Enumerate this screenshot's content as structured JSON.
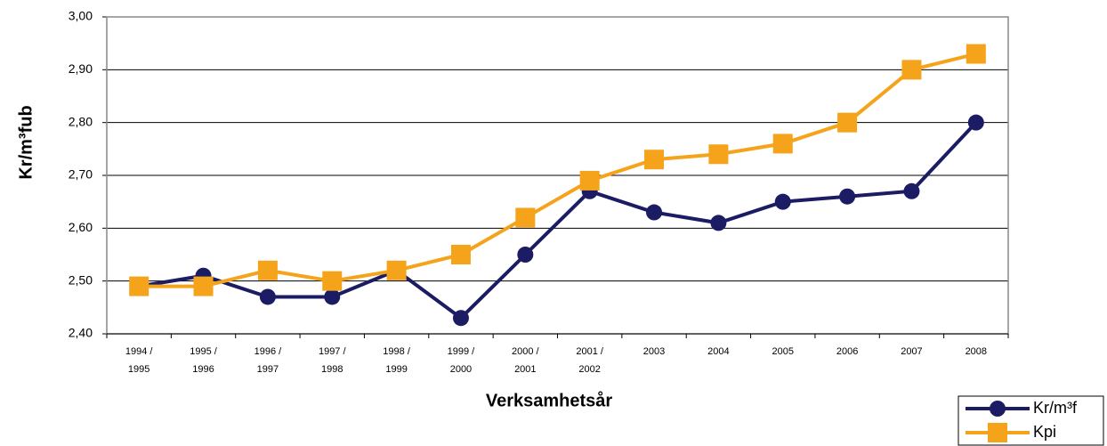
{
  "chart_data": {
    "type": "line",
    "y_label": "Kr/m³fub",
    "x_label": "Verksamhetsår",
    "categories": [
      "1994 / 1995",
      "1995 / 1996",
      "1996 / 1997",
      "1997 / 1998",
      "1998 / 1999",
      "1999 / 2000",
      "2000 / 2001",
      "2001 / 2002",
      "2003",
      "2004",
      "2005",
      "2006",
      "2007",
      "2008"
    ],
    "series": [
      {
        "name": "Kr/m³f",
        "color": "#1c1c64",
        "marker": "circle",
        "values": [
          2.49,
          2.51,
          2.47,
          2.47,
          2.52,
          2.43,
          2.55,
          2.67,
          2.63,
          2.61,
          2.65,
          2.66,
          2.67,
          2.8
        ]
      },
      {
        "name": "Kpi",
        "color": "#f5a31a",
        "marker": "square",
        "values": [
          2.49,
          2.49,
          2.52,
          2.5,
          2.52,
          2.55,
          2.62,
          2.69,
          2.73,
          2.74,
          2.76,
          2.8,
          2.9,
          2.93
        ]
      }
    ],
    "ylim": [
      2.4,
      3.0
    ],
    "yticks": [
      {
        "value": 2.4,
        "label": "2,40"
      },
      {
        "value": 2.5,
        "label": "2,50"
      },
      {
        "value": 2.6,
        "label": "2,60"
      },
      {
        "value": 2.7,
        "label": "2,70"
      },
      {
        "value": 2.8,
        "label": "2,80"
      },
      {
        "value": 2.9,
        "label": "2,90"
      },
      {
        "value": 3.0,
        "label": "3,00"
      }
    ],
    "grid": true,
    "legend": "bottom-right"
  }
}
